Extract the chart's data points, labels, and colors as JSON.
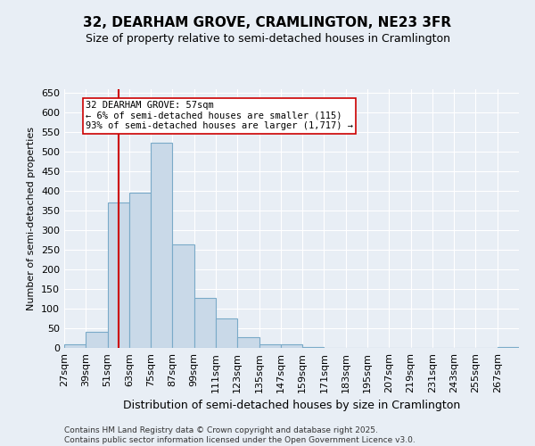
{
  "title": "32, DEARHAM GROVE, CRAMLINGTON, NE23 3FR",
  "subtitle": "Size of property relative to semi-detached houses in Cramlington",
  "xlabel": "Distribution of semi-detached houses by size in Cramlington",
  "ylabel": "Number of semi-detached properties",
  "bin_labels": [
    "27sqm",
    "39sqm",
    "51sqm",
    "63sqm",
    "75sqm",
    "87sqm",
    "99sqm",
    "111sqm",
    "123sqm",
    "135sqm",
    "147sqm",
    "159sqm",
    "171sqm",
    "183sqm",
    "195sqm",
    "207sqm",
    "219sqm",
    "231sqm",
    "243sqm",
    "255sqm",
    "267sqm"
  ],
  "bar_values": [
    8,
    40,
    370,
    395,
    523,
    263,
    128,
    75,
    27,
    10,
    10,
    3,
    1,
    0,
    1,
    0,
    0,
    0,
    0,
    0,
    3
  ],
  "bar_color": "#c9d9e8",
  "bar_edge_color": "#7aaac8",
  "vline_x": 57,
  "vline_color": "#cc0000",
  "ylim": [
    0,
    660
  ],
  "yticks": [
    0,
    50,
    100,
    150,
    200,
    250,
    300,
    350,
    400,
    450,
    500,
    550,
    600,
    650
  ],
  "annotation_title": "32 DEARHAM GROVE: 57sqm",
  "annotation_line1": "← 6% of semi-detached houses are smaller (115)",
  "annotation_line2": "93% of semi-detached houses are larger (1,717) →",
  "annotation_box_color": "#ffffff",
  "annotation_box_edge": "#cc0000",
  "footer_line1": "Contains HM Land Registry data © Crown copyright and database right 2025.",
  "footer_line2": "Contains public sector information licensed under the Open Government Licence v3.0.",
  "background_color": "#e8eef5",
  "plot_bg_color": "#e8eef5",
  "bin_starts": [
    27,
    39,
    51,
    63,
    75,
    87,
    99,
    111,
    123,
    135,
    147,
    159,
    171,
    183,
    195,
    207,
    219,
    231,
    243,
    255,
    267
  ],
  "bin_width": 12,
  "title_fontsize": 11,
  "subtitle_fontsize": 9,
  "ylabel_fontsize": 8,
  "xlabel_fontsize": 9,
  "tick_fontsize": 8,
  "annot_fontsize": 7.5,
  "footer_fontsize": 6.5
}
